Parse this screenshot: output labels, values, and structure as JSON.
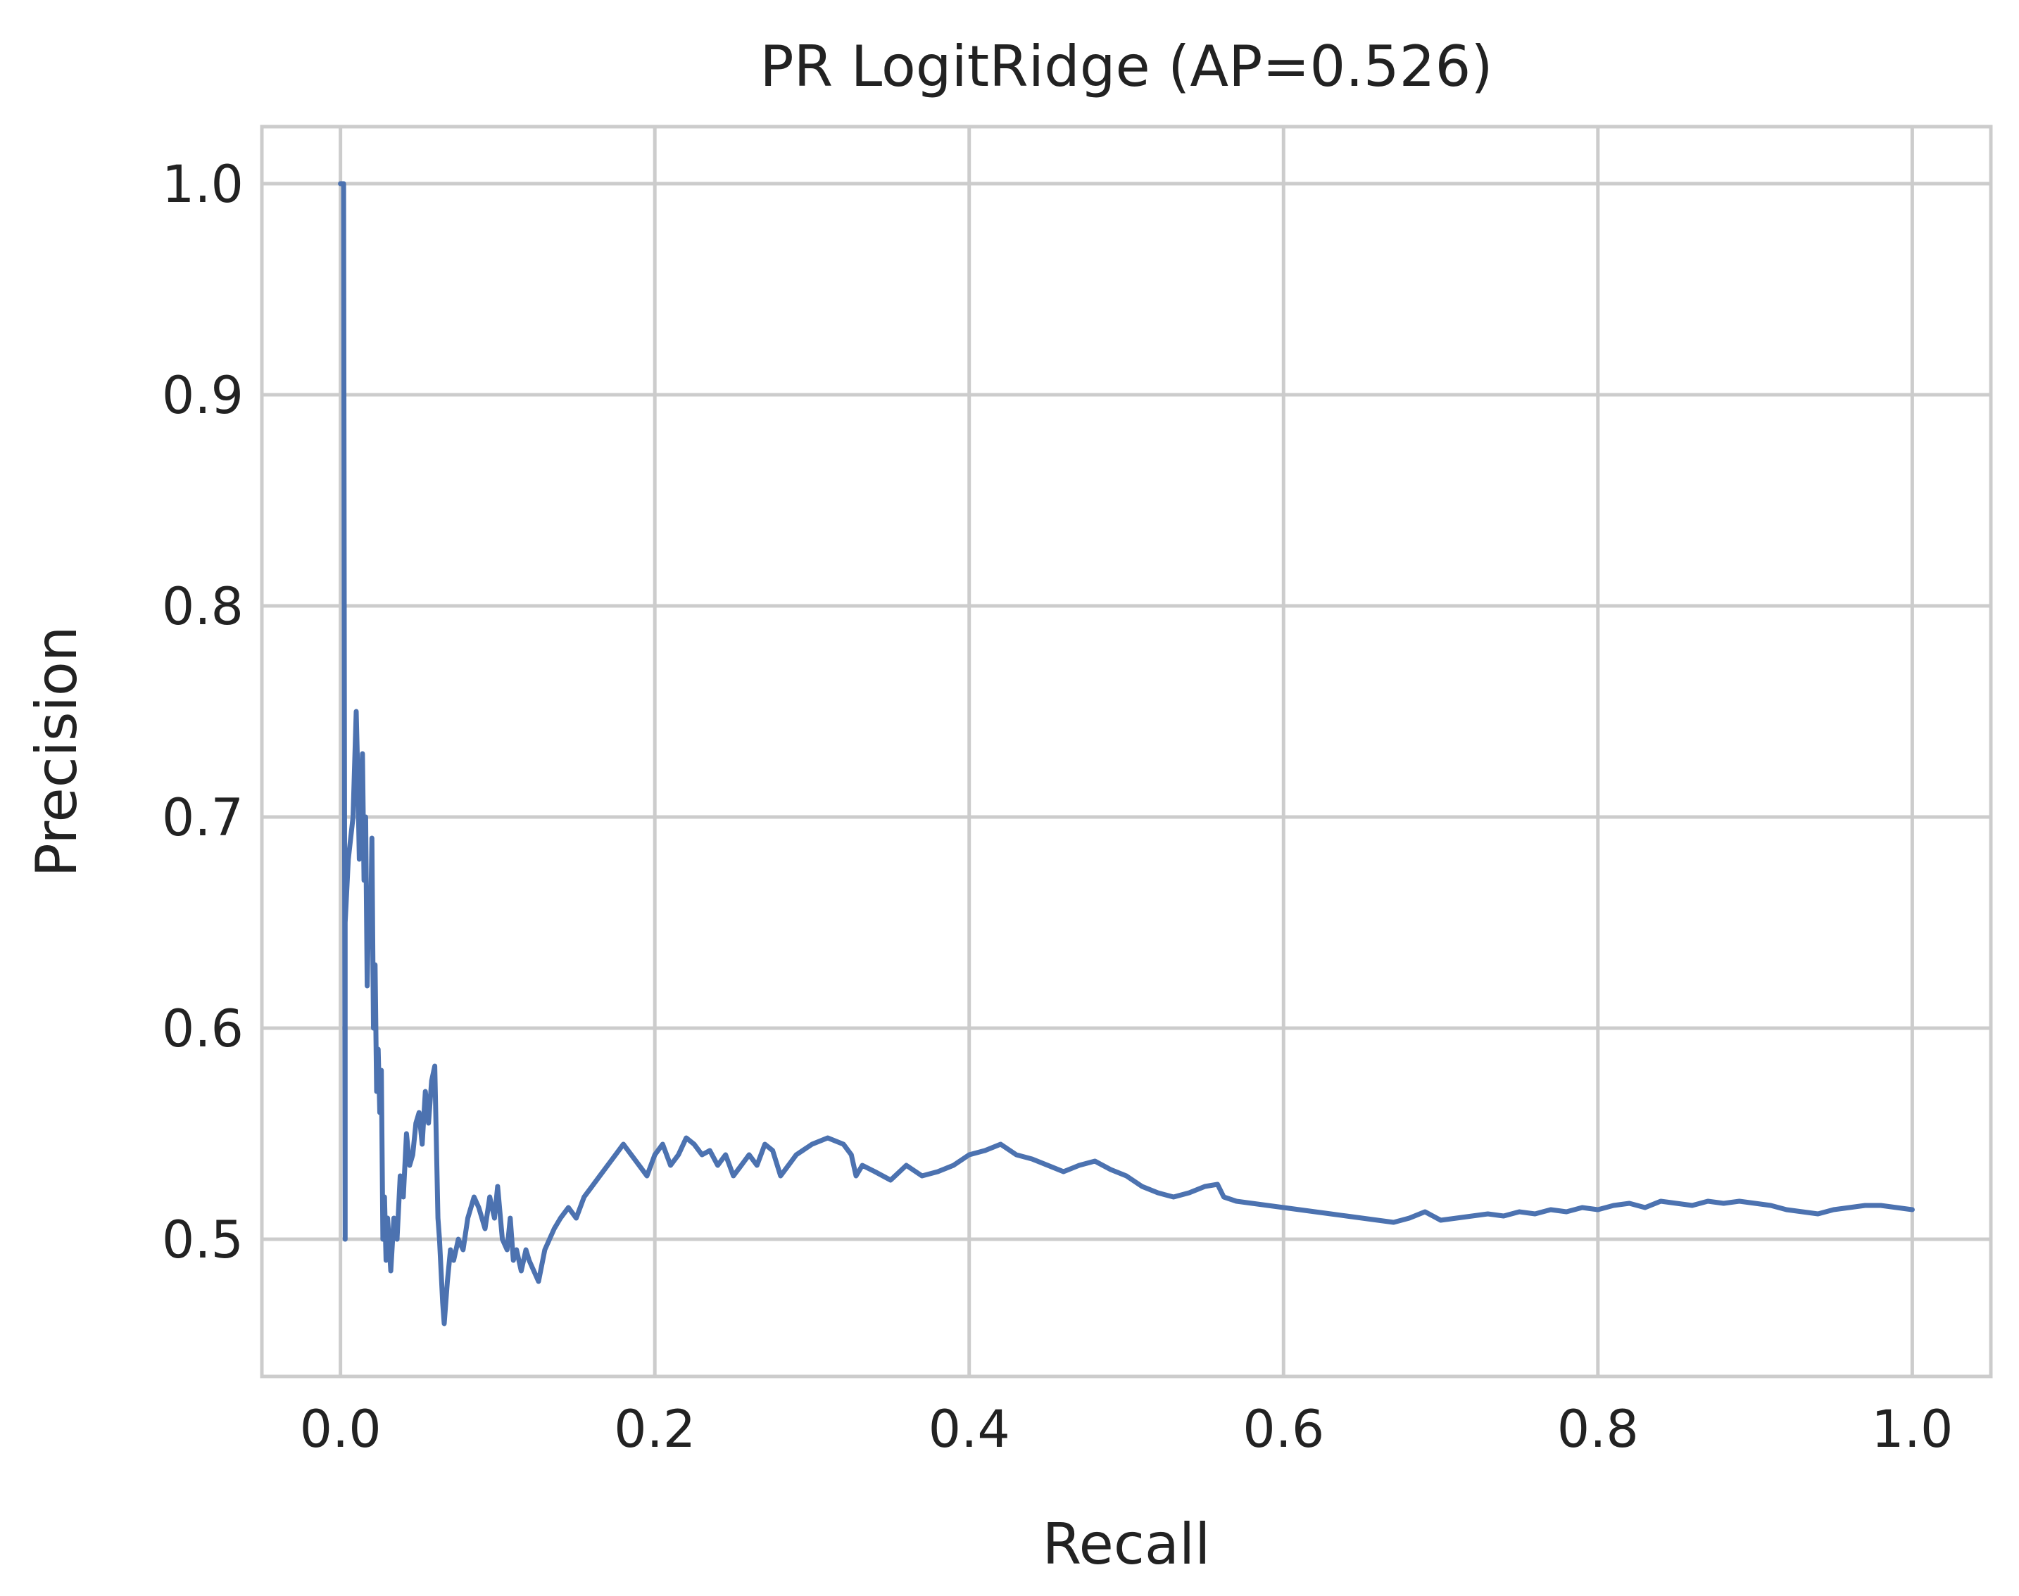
{
  "chart_data": {
    "type": "line",
    "title": "PR LogitRidge (AP=0.526)",
    "xlabel": "Recall",
    "ylabel": "Precision",
    "xlim": [
      -0.05,
      1.05
    ],
    "ylim": [
      0.435,
      1.027
    ],
    "xticks": [
      0.0,
      0.2,
      0.4,
      0.6,
      0.8,
      1.0
    ],
    "xtick_labels": [
      "0.0",
      "0.2",
      "0.4",
      "0.6",
      "0.8",
      "1.0"
    ],
    "yticks": [
      0.5,
      0.6,
      0.7,
      0.8,
      0.9,
      1.0
    ],
    "ytick_labels": [
      "0.5",
      "0.6",
      "0.7",
      "0.8",
      "0.9",
      "1.0"
    ],
    "grid": true,
    "legend": "none",
    "colors": {
      "line": "#4c72b0",
      "grid": "#cccccc",
      "text": "#222222",
      "background": "#ffffff"
    },
    "series": [
      {
        "x": [
          0.0,
          0.002,
          0.003,
          0.003,
          0.005,
          0.008,
          0.01,
          0.011,
          0.012,
          0.013,
          0.014,
          0.015,
          0.016,
          0.017,
          0.018,
          0.019,
          0.02,
          0.021,
          0.022,
          0.023,
          0.024,
          0.025,
          0.026,
          0.027,
          0.028,
          0.029,
          0.03,
          0.032,
          0.034,
          0.036,
          0.038,
          0.04,
          0.042,
          0.044,
          0.046,
          0.048,
          0.05,
          0.052,
          0.054,
          0.056,
          0.058,
          0.06,
          0.062,
          0.063,
          0.065,
          0.066,
          0.068,
          0.07,
          0.072,
          0.075,
          0.078,
          0.081,
          0.085,
          0.088,
          0.092,
          0.095,
          0.098,
          0.1,
          0.103,
          0.106,
          0.108,
          0.11,
          0.112,
          0.115,
          0.118,
          0.12,
          0.123,
          0.126,
          0.13,
          0.133,
          0.136,
          0.14,
          0.145,
          0.15,
          0.155,
          0.16,
          0.165,
          0.17,
          0.175,
          0.18,
          0.185,
          0.19,
          0.195,
          0.2,
          0.205,
          0.21,
          0.215,
          0.22,
          0.225,
          0.23,
          0.235,
          0.24,
          0.245,
          0.25,
          0.255,
          0.26,
          0.265,
          0.27,
          0.275,
          0.28,
          0.285,
          0.29,
          0.3,
          0.31,
          0.32,
          0.325,
          0.328,
          0.332,
          0.34,
          0.35,
          0.36,
          0.37,
          0.38,
          0.39,
          0.4,
          0.41,
          0.42,
          0.43,
          0.44,
          0.45,
          0.46,
          0.47,
          0.48,
          0.49,
          0.5,
          0.51,
          0.52,
          0.53,
          0.54,
          0.55,
          0.558,
          0.562,
          0.57,
          0.58,
          0.59,
          0.6,
          0.61,
          0.62,
          0.63,
          0.64,
          0.65,
          0.66,
          0.67,
          0.68,
          0.69,
          0.7,
          0.71,
          0.72,
          0.73,
          0.74,
          0.75,
          0.76,
          0.77,
          0.78,
          0.79,
          0.8,
          0.81,
          0.82,
          0.83,
          0.84,
          0.85,
          0.86,
          0.87,
          0.88,
          0.89,
          0.9,
          0.91,
          0.92,
          0.93,
          0.94,
          0.95,
          0.96,
          0.97,
          0.98,
          0.99,
          1.0
        ],
        "y": [
          1.0,
          1.0,
          0.5,
          0.65,
          0.68,
          0.7,
          0.75,
          0.72,
          0.68,
          0.7,
          0.73,
          0.67,
          0.7,
          0.62,
          0.66,
          0.64,
          0.69,
          0.6,
          0.63,
          0.57,
          0.59,
          0.56,
          0.58,
          0.5,
          0.52,
          0.49,
          0.51,
          0.485,
          0.51,
          0.5,
          0.53,
          0.52,
          0.55,
          0.535,
          0.54,
          0.555,
          0.56,
          0.545,
          0.57,
          0.555,
          0.575,
          0.582,
          0.51,
          0.5,
          0.47,
          0.46,
          0.48,
          0.495,
          0.49,
          0.5,
          0.495,
          0.51,
          0.52,
          0.515,
          0.505,
          0.52,
          0.51,
          0.525,
          0.5,
          0.495,
          0.51,
          0.49,
          0.495,
          0.485,
          0.495,
          0.49,
          0.485,
          0.48,
          0.495,
          0.5,
          0.505,
          0.51,
          0.515,
          0.51,
          0.52,
          0.525,
          0.53,
          0.535,
          0.54,
          0.545,
          0.54,
          0.535,
          0.53,
          0.54,
          0.545,
          0.535,
          0.54,
          0.548,
          0.545,
          0.54,
          0.542,
          0.535,
          0.54,
          0.53,
          0.535,
          0.54,
          0.535,
          0.545,
          0.542,
          0.53,
          0.535,
          0.54,
          0.545,
          0.548,
          0.545,
          0.54,
          0.53,
          0.535,
          0.532,
          0.528,
          0.535,
          0.53,
          0.532,
          0.535,
          0.54,
          0.542,
          0.545,
          0.54,
          0.538,
          0.535,
          0.532,
          0.535,
          0.537,
          0.533,
          0.53,
          0.525,
          0.522,
          0.52,
          0.522,
          0.525,
          0.526,
          0.52,
          0.518,
          0.517,
          0.516,
          0.515,
          0.514,
          0.513,
          0.512,
          0.511,
          0.51,
          0.509,
          0.508,
          0.51,
          0.513,
          0.509,
          0.51,
          0.511,
          0.512,
          0.511,
          0.513,
          0.512,
          0.514,
          0.513,
          0.515,
          0.514,
          0.516,
          0.517,
          0.515,
          0.518,
          0.517,
          0.516,
          0.518,
          0.517,
          0.518,
          0.517,
          0.516,
          0.514,
          0.513,
          0.512,
          0.514,
          0.515,
          0.516,
          0.516,
          0.515,
          0.514
        ]
      }
    ]
  }
}
